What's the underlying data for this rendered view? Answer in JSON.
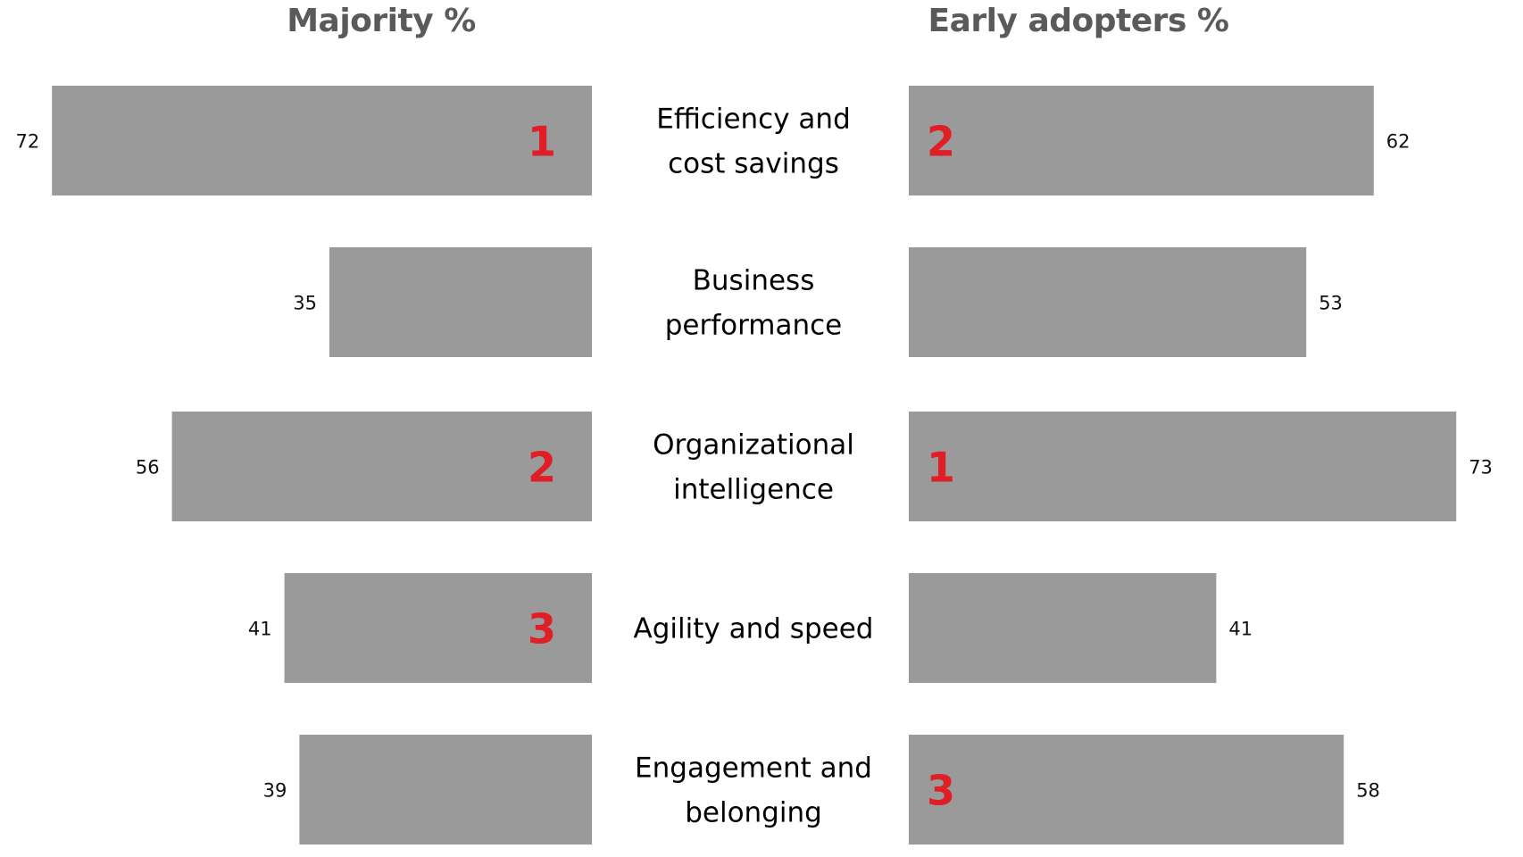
{
  "chart_data": {
    "type": "bar",
    "orientation": "horizontal-diverging",
    "headers": {
      "left": "Majority %",
      "right": "Early adopters %"
    },
    "categories": [
      [
        "Efficiency and",
        "cost savings"
      ],
      [
        "Business",
        "performance"
      ],
      [
        "Organizational",
        "intelligence"
      ],
      [
        "Agility and speed"
      ],
      [
        "Engagement and",
        "belonging"
      ]
    ],
    "series": [
      {
        "side": "left",
        "values": [
          72,
          35,
          56,
          41,
          39
        ],
        "value_labels": [
          "72",
          "35",
          "56",
          "41",
          "39"
        ],
        "ranks": [
          "1",
          "",
          "2",
          "3",
          ""
        ]
      },
      {
        "side": "right",
        "values": [
          62,
          53,
          73,
          41,
          58
        ],
        "value_labels": [
          "62",
          "53",
          "73",
          "41",
          "58"
        ],
        "ranks": [
          "2",
          "",
          "1",
          "",
          "3"
        ]
      }
    ],
    "xlim": [
      0,
      100
    ],
    "grid": false,
    "legend": "none",
    "colors": {
      "bar": "#9a9a9a",
      "rank": "#e01e26",
      "header": "#5a5a5a",
      "category": "#000000",
      "value_label": "#111111"
    }
  }
}
